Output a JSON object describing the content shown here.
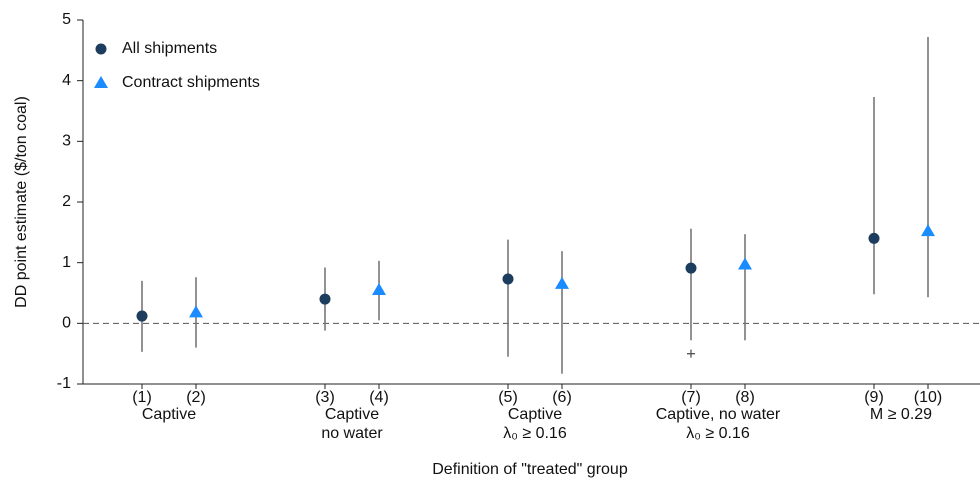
{
  "chart_data": {
    "type": "errorbar",
    "y_label": "DD point estimate ($/ton coal)",
    "x_label": "Definition of \"treated\" group",
    "categories": [
      "(1)",
      "(2)",
      "(3)",
      "(4)",
      "(5)",
      "(6)",
      "(7)",
      "(8)",
      "(9)",
      "(10)"
    ],
    "group_labels": [
      [
        "Captive"
      ],
      [
        "Captive",
        "no water"
      ],
      [
        "Captive",
        "λ₀ ≥ 0.16"
      ],
      [
        "Captive, no water",
        "λ₀ ≥ 0.16"
      ],
      [
        "M ≥ 0.29"
      ]
    ],
    "series": [
      {
        "name": "All shipments",
        "color": "#1d3d5e",
        "marker": "circle",
        "values": [
          0.12,
          null,
          0.4,
          null,
          0.73,
          null,
          0.91,
          null,
          1.4,
          null
        ],
        "lower": [
          -0.47,
          null,
          -0.12,
          null,
          -0.55,
          null,
          -0.28,
          null,
          0.48,
          null
        ],
        "upper": [
          0.7,
          null,
          0.92,
          null,
          1.38,
          null,
          1.56,
          null,
          3.73,
          null
        ]
      },
      {
        "name": "Contract shipments",
        "color": "#1a8cff",
        "marker": "triangle",
        "values": [
          null,
          0.18,
          null,
          0.55,
          null,
          0.65,
          null,
          0.97,
          null,
          1.52
        ],
        "lower": [
          null,
          -0.4,
          null,
          0.05,
          null,
          -0.83,
          null,
          -0.28,
          null,
          0.43
        ],
        "upper": [
          null,
          0.76,
          null,
          1.03,
          null,
          1.19,
          null,
          1.47,
          null,
          4.72
        ]
      },
      {
        "color": "#555555",
        "marker": "plus",
        "values": [
          null,
          null,
          null,
          null,
          null,
          null,
          -0.5,
          null,
          null,
          null
        ]
      }
    ],
    "ylim": [
      -1,
      5
    ],
    "yticks": [
      -1,
      0,
      1,
      2,
      3,
      4,
      5
    ],
    "reference_line": 0,
    "error_color": "#777777"
  }
}
